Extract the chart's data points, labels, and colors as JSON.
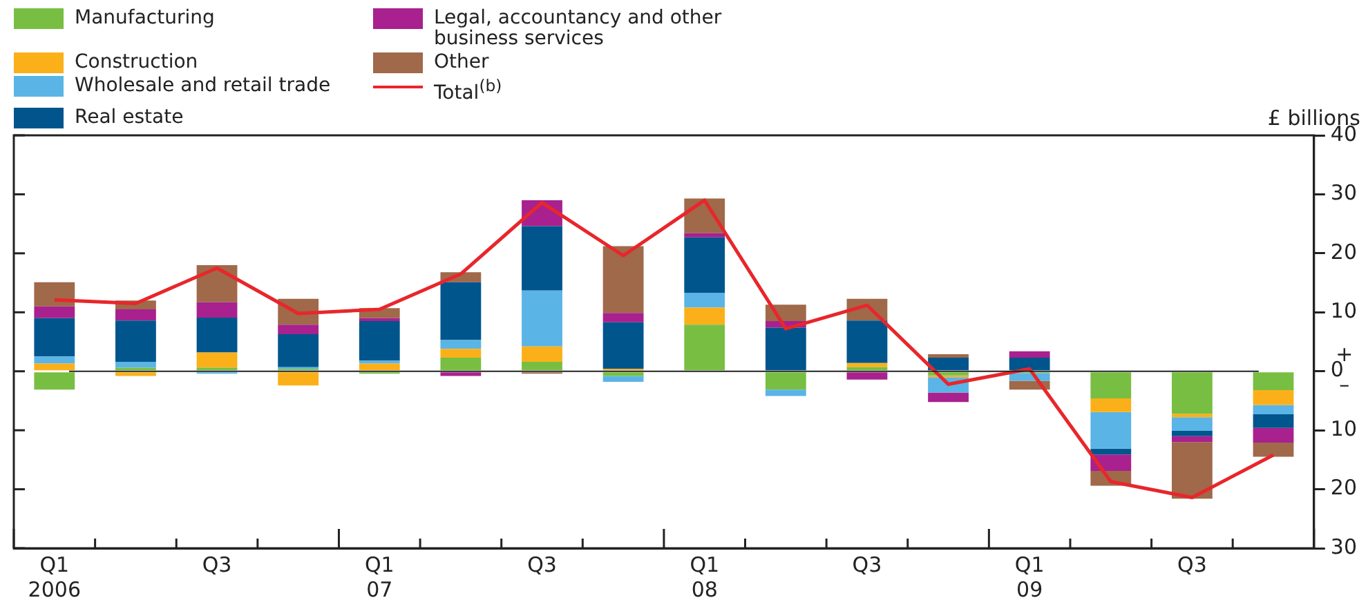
{
  "chart_data": {
    "type": "bar",
    "stacked": true,
    "ylabel": "£ billions",
    "categories": [
      "Q1 2006",
      null,
      "Q3",
      null,
      "Q1 07",
      null,
      "Q3",
      null,
      "Q1 08",
      null,
      "Q3",
      null,
      "Q1 09",
      null,
      "Q3",
      null
    ],
    "series": [
      {
        "name": "Manufacturing",
        "color": "#78be43",
        "values": [
          -3.1,
          0.6,
          0.6,
          0.4,
          -0.4,
          2.3,
          1.6,
          -0.8,
          7.9,
          -3.1,
          0.7,
          -0.7,
          -0.3,
          -4.6,
          -7.2,
          -3.2
        ]
      },
      {
        "name": "Construction",
        "color": "#fbb01a",
        "values": [
          1.3,
          -0.8,
          2.6,
          -2.4,
          1.3,
          1.5,
          2.6,
          0.4,
          2.9,
          null,
          0.7,
          -0.3,
          null,
          -2.3,
          -0.6,
          -2.5
        ]
      },
      {
        "name": "Wholesale and retail trade",
        "color": "#5ab4e5",
        "values": [
          1.2,
          1.0,
          -0.4,
          0.3,
          0.5,
          1.5,
          9.5,
          -1.0,
          2.5,
          -1.1,
          null,
          -2.6,
          -1.3,
          -6.2,
          -2.3,
          -1.6
        ]
      },
      {
        "name": "Real estate",
        "color": "#00558c",
        "values": [
          6.5,
          7.0,
          5.9,
          5.6,
          6.7,
          9.8,
          10.9,
          7.9,
          9.4,
          7.4,
          7.2,
          2.3,
          2.3,
          -1.0,
          -0.9,
          -2.3
        ]
      },
      {
        "name": "Legal, accountancy and other business services",
        "color": "#a8218e",
        "values": [
          2.0,
          1.9,
          2.6,
          1.6,
          0.5,
          -0.8,
          4.4,
          1.6,
          0.7,
          1.1,
          -1.4,
          -1.6,
          1.1,
          -2.8,
          -1.0,
          -2.5
        ]
      },
      {
        "name": "Other",
        "color": "#a0694a",
        "values": [
          4.1,
          1.5,
          6.3,
          4.4,
          1.7,
          1.7,
          -0.4,
          11.3,
          5.9,
          2.8,
          3.7,
          0.6,
          -1.5,
          -2.5,
          -9.6,
          -2.4
        ]
      },
      {
        "name": "Total$^{(b)}$",
        "type": "line",
        "color": "#e8262b",
        "values": [
          12.1,
          11.5,
          17.5,
          9.8,
          10.5,
          16.5,
          28.6,
          19.6,
          29.0,
          7.2,
          11.2,
          -2.2,
          0.4,
          -18.7,
          -21.4,
          -14.2
        ]
      }
    ],
    "ylim": [
      -30,
      40
    ],
    "yticks": [
      {
        "value": -30,
        "label": "30"
      },
      {
        "value": -20,
        "label": "20"
      },
      {
        "value": -10,
        "label": "10"
      },
      0,
      10,
      20,
      30,
      40
    ],
    "annotations": [
      "+",
      "–"
    ],
    "ref_lines": [
      {
        "axis": "y",
        "value": 0,
        "color": "#222222"
      }
    ],
    "grid": false,
    "legend": "top left",
    "marker": "none"
  }
}
